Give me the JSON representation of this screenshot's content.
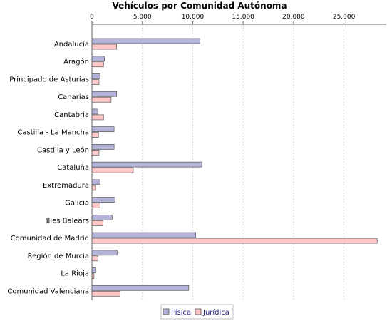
{
  "chart_data": {
    "type": "bar",
    "orientation": "horizontal",
    "title": "Vehículos por Comunidad Autónoma",
    "categories": [
      "Andalucía",
      "Aragón",
      "Principado de Asturias",
      "Canarias",
      "Cantabria",
      "Castilla - La Mancha",
      "Castilla y León",
      "Cataluña",
      "Extremadura",
      "Galicia",
      "Illes Balears",
      "Comunidad de Madrid",
      "Región de Murcia",
      "La Rioja",
      "Comunidad Valenciana"
    ],
    "series": [
      {
        "name": "Física",
        "color": "#b3b3d9",
        "values": [
          10700,
          1250,
          800,
          2450,
          600,
          2200,
          2200,
          10900,
          800,
          2300,
          2000,
          10300,
          2500,
          350,
          9600
        ]
      },
      {
        "name": "Jurídica",
        "color": "#ffc8c8",
        "values": [
          2450,
          1150,
          700,
          1900,
          1150,
          650,
          700,
          4100,
          350,
          800,
          1100,
          28300,
          600,
          200,
          2800
        ]
      }
    ],
    "x_ticks": [
      "0",
      "5.000",
      "10.000",
      "15.000",
      "20.000",
      "25.000"
    ],
    "xlim": [
      0,
      29200
    ],
    "grid": true,
    "legend_position": "bottom"
  }
}
